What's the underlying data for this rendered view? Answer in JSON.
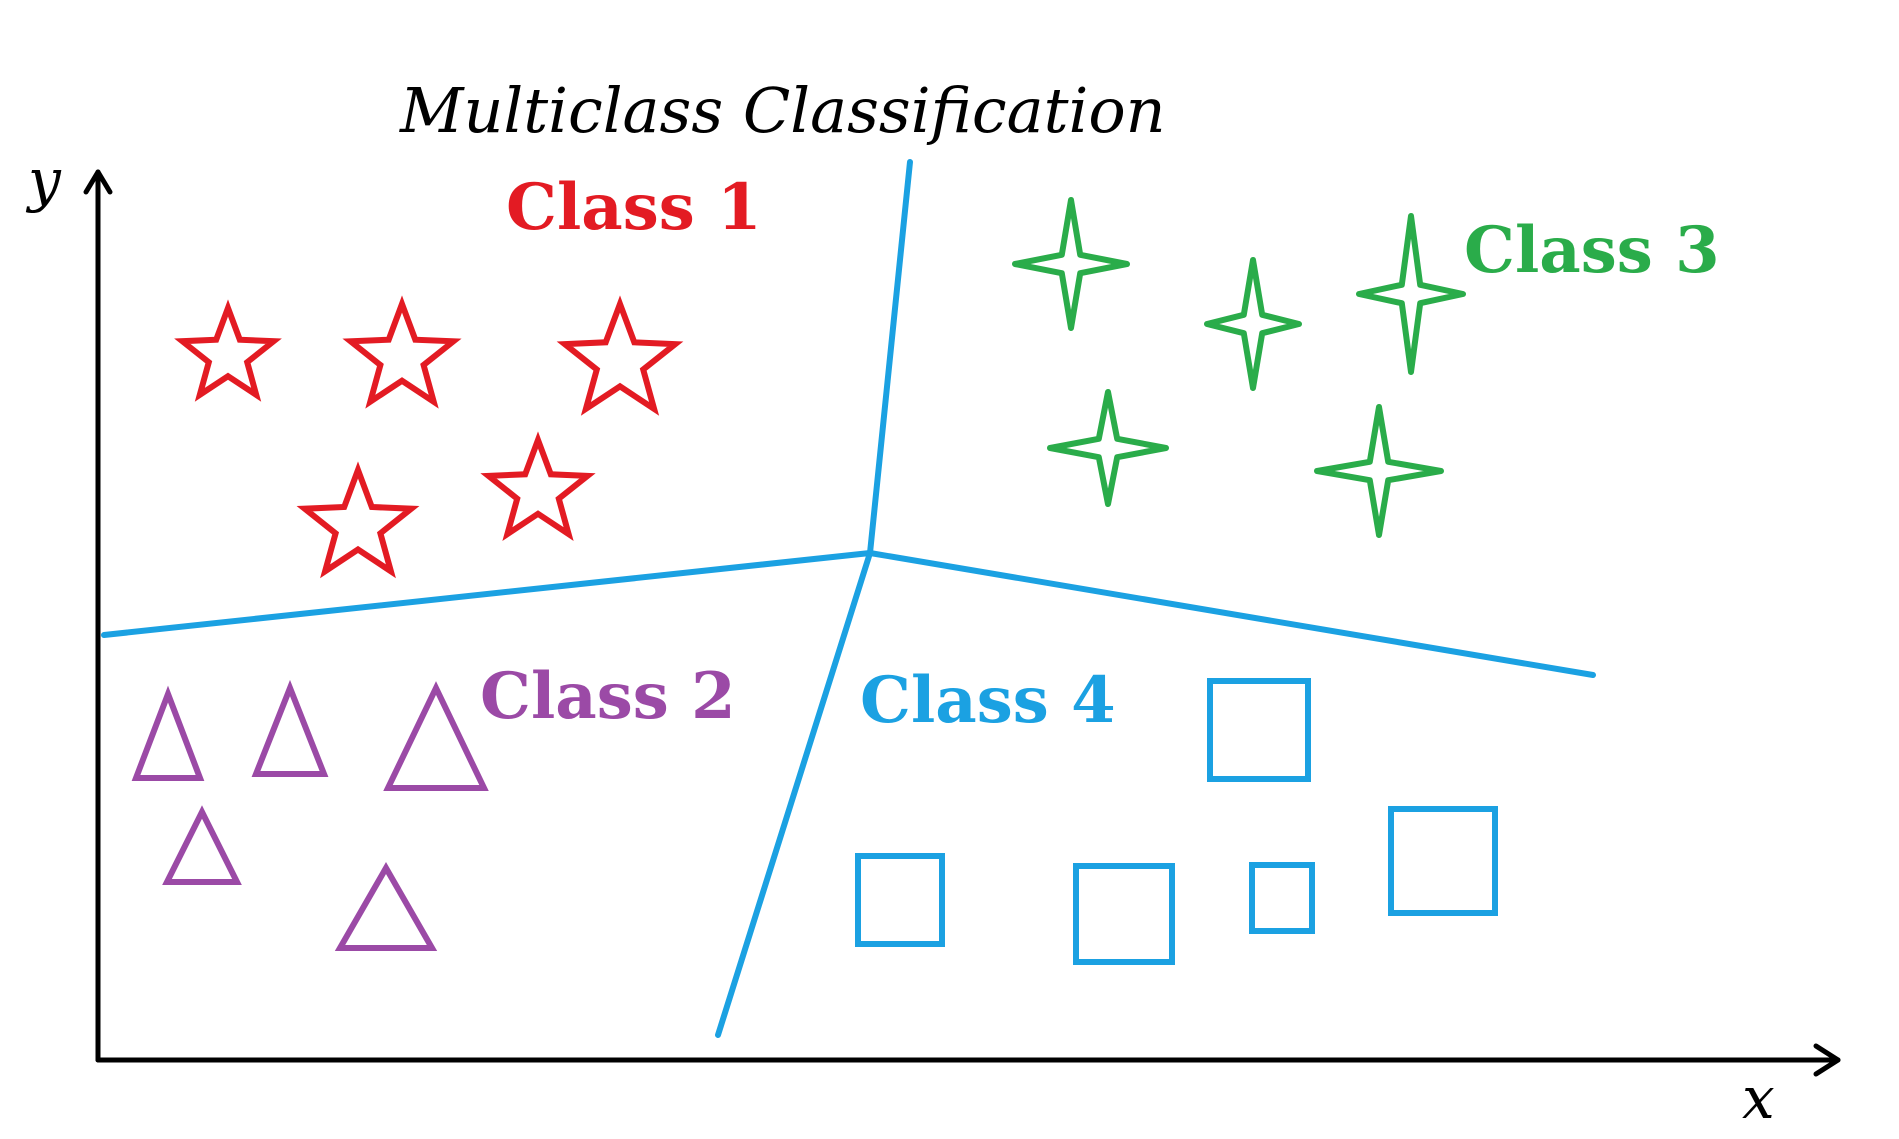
{
  "title": "Multiclass Classification",
  "axes": {
    "x_label": "x",
    "y_label": "y"
  },
  "colors": {
    "axis": "#000000",
    "boundary": "#1ba1e2",
    "class1": "#e31b23",
    "class2": "#9b4aa6",
    "class3": "#2aac4a",
    "class4": "#1ba1e2"
  },
  "classes": [
    {
      "id": "class1",
      "label": "Class 1",
      "marker": "star-icon",
      "count": 5
    },
    {
      "id": "class2",
      "label": "Class 2",
      "marker": "triangle-icon",
      "count": 5
    },
    {
      "id": "class3",
      "label": "Class 3",
      "marker": "four-point-star-icon",
      "count": 5
    },
    {
      "id": "class4",
      "label": "Class 4",
      "marker": "square-icon",
      "count": 5
    }
  ],
  "boundary_count": 4
}
